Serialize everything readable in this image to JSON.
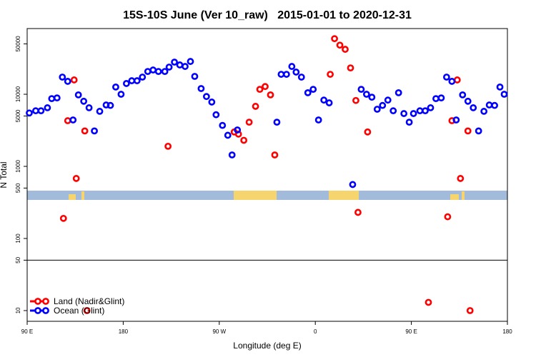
{
  "chart_data": {
    "type": "scatter",
    "title": "15S-10S June (Ver 10_raw)   2015-01-01 to 2020-12-31",
    "xlabel": "Longitude (deg E)",
    "ylabel": "N Total",
    "xlim": [
      90,
      540
    ],
    "xticks": [
      {
        "value": 90,
        "label": "90 E"
      },
      180,
      {
        "value": 270,
        "label": "90 W"
      },
      {
        "value": 360,
        "label": "0"
      },
      {
        "value": 450,
        "label": "90 E"
      },
      {
        "value": 540,
        "label": "180"
      }
    ],
    "ylim": [
      7.1,
      81500
    ],
    "ylog": true,
    "yticks": [
      10,
      50,
      100,
      500,
      1000,
      5000,
      10000,
      50000
    ],
    "hline": 50,
    "legend": "bottomleft",
    "series": [
      {
        "name": "Land (Nadir&Glint)",
        "color": "#ff0000",
        "x": [
          124,
          128,
          134,
          136,
          144,
          146,
          222,
          284,
          288,
          293,
          298,
          304,
          308,
          313,
          318,
          322,
          374,
          378,
          383,
          388,
          393,
          398,
          400,
          409,
          466,
          484,
          488,
          493,
          496,
          503,
          505
        ],
        "values": [
          190,
          4300,
          15800,
          680,
          3100,
          10,
          1900,
          3000,
          2800,
          2300,
          4100,
          6800,
          11700,
          12800,
          9800,
          1440,
          18900,
          59000,
          48000,
          42000,
          23200,
          8200,
          230,
          3000,
          13,
          200,
          4300,
          15800,
          680,
          3100,
          10
        ]
      },
      {
        "name": "Ocean (Glint)",
        "color": "#0000ff",
        "x": [
          92,
          98,
          103,
          109,
          113,
          118,
          123,
          128,
          133,
          138,
          143,
          148,
          153,
          158,
          164,
          168,
          173,
          178,
          183,
          188,
          193,
          198,
          203,
          208,
          213,
          219,
          223,
          228,
          233,
          238,
          243,
          247,
          253,
          258,
          263,
          267,
          273,
          278,
          282,
          287,
          324,
          328,
          333,
          338,
          342,
          347,
          353,
          358,
          363,
          368,
          373,
          395,
          403,
          408,
          413,
          418,
          423,
          428,
          433,
          438,
          443,
          448,
          452,
          458,
          463,
          468,
          473,
          478,
          483,
          488,
          492,
          498,
          503,
          508,
          513,
          518,
          523,
          528,
          533,
          537
        ],
        "values": [
          5500,
          5900,
          5900,
          6500,
          8700,
          8900,
          17300,
          15100,
          4400,
          9800,
          8000,
          6500,
          3100,
          5800,
          7100,
          7000,
          12600,
          10000,
          14100,
          15400,
          15400,
          17300,
          20700,
          21700,
          20700,
          20700,
          23800,
          27900,
          25500,
          24300,
          28500,
          17700,
          12000,
          9300,
          7800,
          5200,
          3700,
          2700,
          1440,
          3200,
          4100,
          18900,
          18900,
          24300,
          20300,
          17300,
          10500,
          11700,
          4400,
          8300,
          7600,
          560,
          11700,
          10000,
          9100,
          6200,
          7000,
          8300,
          5900,
          10500,
          5400,
          4100,
          5400,
          5900,
          5900,
          6500,
          8700,
          8900,
          17300,
          15100,
          4400,
          9800,
          8000,
          6500,
          3100,
          5800,
          7100,
          7000,
          12600,
          10000
        ]
      }
    ]
  }
}
